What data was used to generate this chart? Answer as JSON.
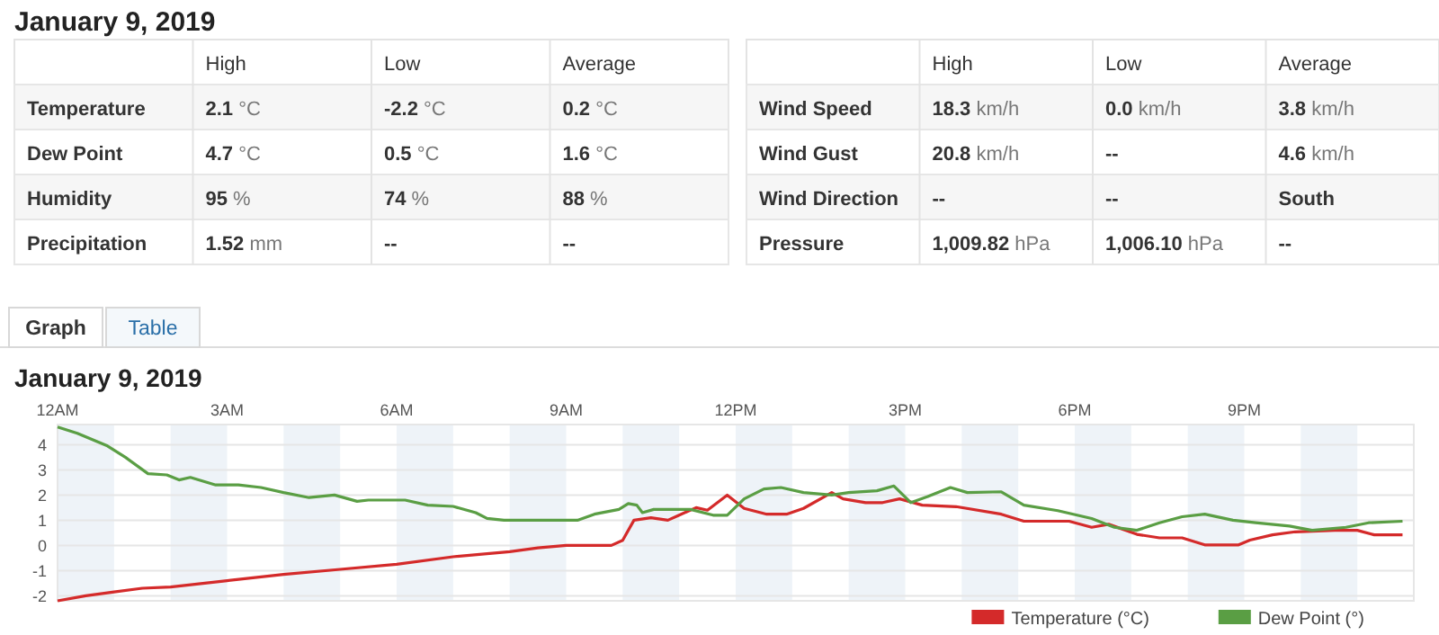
{
  "chart_data": [
    {
      "type": "other",
      "title": "January 9, 2019",
      "categories": [
        null,
        "High",
        "Low",
        "Average"
      ],
      "annotations": [
        "Temperature",
        "2.1 °C",
        "-2.2 °C",
        "0.2 °C",
        "Dew Point",
        "4.7 °C",
        "0.5 °C",
        "1.6 °C",
        "Humidity",
        "95 %",
        "74 %",
        "88 %",
        "Precipitation",
        "1.52 mm",
        "--",
        "--"
      ]
    },
    {
      "type": "other",
      "categories": [
        null,
        "High",
        "Low",
        "Average"
      ],
      "annotations": [
        "Wind Speed",
        "18.3 km/h",
        "0.0 km/h",
        "3.8 km/h",
        "Wind Gust",
        "20.8 km/h",
        "--",
        "4.6 km/h",
        "Wind Direction",
        "--",
        "--",
        "South",
        "Pressure",
        "1,009.82 hPa",
        "1,006.10 hPa",
        "--"
      ]
    },
    {
      "type": "other",
      "annotations": [
        "Graph",
        "Table"
      ]
    },
    {
      "type": "line",
      "title": "January 9, 2019",
      "xlim": [
        "2019-01-09T00:00",
        "2019-01-10T00:00"
      ],
      "xticks": [
        {
          "value": "2019-01-09T00:00",
          "label": "12AM"
        },
        {
          "value": "2019-01-09T03:00",
          "label": "3AM"
        },
        {
          "value": "2019-01-09T06:00",
          "label": "6AM"
        },
        {
          "value": "2019-01-09T09:00",
          "label": "9AM"
        },
        {
          "value": "2019-01-09T12:00",
          "label": "12PM"
        },
        {
          "value": "2019-01-09T15:00",
          "label": "3PM"
        },
        {
          "value": "2019-01-09T18:00",
          "label": "6PM"
        },
        {
          "value": "2019-01-09T21:00",
          "label": "9PM"
        }
      ],
      "ylim": [
        -2.2,
        4.8
      ],
      "yticks": [
        -2,
        -1,
        0,
        1,
        2,
        3,
        4
      ],
      "grid": "y",
      "legend": "bottom right",
      "marker": "none",
      "line_style": "solid",
      "bands": [
        {
          "axis": "x",
          "from": "2019-01-09T00:00",
          "to": "2019-01-09T01:00",
          "color": "#eef3f8"
        },
        {
          "axis": "x",
          "from": "2019-01-09T02:00",
          "to": "2019-01-09T03:00",
          "color": "#eef3f8"
        },
        {
          "axis": "x",
          "from": "2019-01-09T04:00",
          "to": "2019-01-09T05:00",
          "color": "#eef3f8"
        },
        {
          "axis": "x",
          "from": "2019-01-09T06:00",
          "to": "2019-01-09T07:00",
          "color": "#eef3f8"
        },
        {
          "axis": "x",
          "from": "2019-01-09T08:00",
          "to": "2019-01-09T09:00",
          "color": "#eef3f8"
        },
        {
          "axis": "x",
          "from": "2019-01-09T10:00",
          "to": "2019-01-09T11:00",
          "color": "#eef3f8"
        },
        {
          "axis": "x",
          "from": "2019-01-09T12:00",
          "to": "2019-01-09T13:00",
          "color": "#eef3f8"
        },
        {
          "axis": "x",
          "from": "2019-01-09T14:00",
          "to": "2019-01-09T15:00",
          "color": "#eef3f8"
        },
        {
          "axis": "x",
          "from": "2019-01-09T16:00",
          "to": "2019-01-09T17:00",
          "color": "#eef3f8"
        },
        {
          "axis": "x",
          "from": "2019-01-09T18:00",
          "to": "2019-01-09T19:00",
          "color": "#eef3f8"
        },
        {
          "axis": "x",
          "from": "2019-01-09T20:00",
          "to": "2019-01-09T21:00",
          "color": "#eef3f8"
        },
        {
          "axis": "x",
          "from": "2019-01-09T22:00",
          "to": "2019-01-09T23:00",
          "color": "#eef3f8"
        }
      ],
      "series": [
        {
          "name": "Temperature (°C)",
          "color": "#d42a2a",
          "x": [
            "2019-01-09T00:00",
            "2019-01-09T00:30",
            "2019-01-09T01:00",
            "2019-01-09T01:30",
            "2019-01-09T02:00",
            "2019-01-09T03:00",
            "2019-01-09T04:00",
            "2019-01-09T05:00",
            "2019-01-09T06:00",
            "2019-01-09T07:00",
            "2019-01-09T08:00",
            "2019-01-09T08:30",
            "2019-01-09T09:00",
            "2019-01-09T09:48",
            "2019-01-09T10:00",
            "2019-01-09T10:12",
            "2019-01-09T10:30",
            "2019-01-09T10:48",
            "2019-01-09T11:00",
            "2019-01-09T11:18",
            "2019-01-09T11:30",
            "2019-01-09T11:51",
            "2019-01-09T12:09",
            "2019-01-09T12:33",
            "2019-01-09T12:54",
            "2019-01-09T13:12",
            "2019-01-09T13:42",
            "2019-01-09T13:54",
            "2019-01-09T14:18",
            "2019-01-09T14:36",
            "2019-01-09T14:54",
            "2019-01-09T15:18",
            "2019-01-09T15:54",
            "2019-01-09T16:42",
            "2019-01-09T17:06",
            "2019-01-09T17:54",
            "2019-01-09T18:18",
            "2019-01-09T18:36",
            "2019-01-09T19:06",
            "2019-01-09T19:30",
            "2019-01-09T19:54",
            "2019-01-09T20:18",
            "2019-01-09T20:54",
            "2019-01-09T21:06",
            "2019-01-09T21:30",
            "2019-01-09T21:54",
            "2019-01-09T22:36",
            "2019-01-09T23:00",
            "2019-01-09T23:18",
            "2019-01-09T23:48"
          ],
          "values": [
            -2.2,
            -2,
            -1.85,
            -1.7,
            -1.65,
            -1.4,
            -1.15,
            -0.95,
            -0.75,
            -0.45,
            -0.25,
            -0.1,
            0,
            0,
            0.2,
            1,
            1.1,
            1,
            1.2,
            1.5,
            1.4,
            2,
            1.47,
            1.24,
            1.24,
            1.47,
            2.1,
            1.85,
            1.7,
            1.7,
            1.85,
            1.6,
            1.54,
            1.24,
            0.96,
            0.96,
            0.72,
            0.84,
            0.44,
            0.3,
            0.3,
            0.02,
            0.02,
            0.21,
            0.42,
            0.54,
            0.6,
            0.6,
            0.42,
            0.42
          ]
        },
        {
          "name": "Dew Point (°)",
          "color": "#5a9e44",
          "x": [
            "2019-01-09T00:00",
            "2019-01-09T00:21",
            "2019-01-09T00:53",
            "2019-01-09T01:12",
            "2019-01-09T01:36",
            "2019-01-09T01:56",
            "2019-01-09T02:09",
            "2019-01-09T02:21",
            "2019-01-09T02:48",
            "2019-01-09T03:12",
            "2019-01-09T03:36",
            "2019-01-09T04:00",
            "2019-01-09T04:27",
            "2019-01-09T04:54",
            "2019-01-09T05:18",
            "2019-01-09T05:30",
            "2019-01-09T06:09",
            "2019-01-09T06:33",
            "2019-01-09T07:00",
            "2019-01-09T07:24",
            "2019-01-09T07:36",
            "2019-01-09T07:54",
            "2019-01-09T08:27",
            "2019-01-09T09:12",
            "2019-01-09T09:30",
            "2019-01-09T09:56",
            "2019-01-09T10:06",
            "2019-01-09T10:15",
            "2019-01-09T10:21",
            "2019-01-09T10:33",
            "2019-01-09T11:12",
            "2019-01-09T11:36",
            "2019-01-09T11:51",
            "2019-01-09T12:09",
            "2019-01-09T12:30",
            "2019-01-09T12:48",
            "2019-01-09T13:12",
            "2019-01-09T13:42",
            "2019-01-09T14:00",
            "2019-01-09T14:30",
            "2019-01-09T14:48",
            "2019-01-09T15:06",
            "2019-01-09T15:24",
            "2019-01-09T15:48",
            "2019-01-09T16:06",
            "2019-01-09T16:42",
            "2019-01-09T17:06",
            "2019-01-09T17:42",
            "2019-01-09T18:18",
            "2019-01-09T18:42",
            "2019-01-09T19:06",
            "2019-01-09T19:30",
            "2019-01-09T19:54",
            "2019-01-09T20:18",
            "2019-01-09T20:48",
            "2019-01-09T21:12",
            "2019-01-09T21:48",
            "2019-01-09T22:12",
            "2019-01-09T22:48",
            "2019-01-09T23:12",
            "2019-01-09T23:48"
          ],
          "values": [
            4.7,
            4.45,
            3.95,
            3.5,
            2.85,
            2.8,
            2.6,
            2.7,
            2.4,
            2.4,
            2.3,
            2.1,
            1.9,
            2,
            1.75,
            1.8,
            1.8,
            1.6,
            1.55,
            1.3,
            1.07,
            1,
            1,
            1,
            1.24,
            1.43,
            1.66,
            1.6,
            1.3,
            1.43,
            1.43,
            1.2,
            1.2,
            1.85,
            2.24,
            2.3,
            2.1,
            2,
            2.1,
            2.17,
            2.36,
            1.7,
            1.94,
            2.3,
            2.1,
            2.13,
            1.6,
            1.38,
            1.07,
            0.72,
            0.6,
            0.9,
            1.14,
            1.24,
            1,
            0.9,
            0.77,
            0.6,
            0.72,
            0.9,
            0.96
          ]
        }
      ]
    }
  ]
}
